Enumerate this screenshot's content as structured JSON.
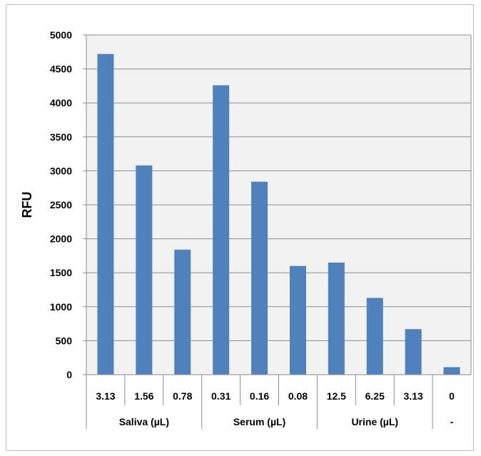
{
  "chart_data": {
    "type": "bar",
    "title": "",
    "ylabel": "RFU",
    "xlabel": "",
    "ylim": [
      0,
      5000
    ],
    "y_ticks": [
      0,
      500,
      1000,
      1500,
      2000,
      2500,
      3000,
      3500,
      4000,
      4500,
      5000
    ],
    "grid": "horizontal",
    "legend": "none",
    "bar_color": "#4f81bd",
    "plot_background": "#f2f2f2",
    "categories": [
      "3.13",
      "1.56",
      "0.78",
      "0.31",
      "0.16",
      "0.08",
      "12.5",
      "6.25",
      "3.13",
      "0"
    ],
    "groups": [
      {
        "label": "Saliva (µL)",
        "span": 3
      },
      {
        "label": "Serum (µL)",
        "span": 3
      },
      {
        "label": "Urine (µL)",
        "span": 3
      },
      {
        "label": "-",
        "span": 1
      }
    ],
    "values": [
      4720,
      3080,
      1840,
      4260,
      2840,
      1600,
      1650,
      1130,
      670,
      110
    ]
  }
}
